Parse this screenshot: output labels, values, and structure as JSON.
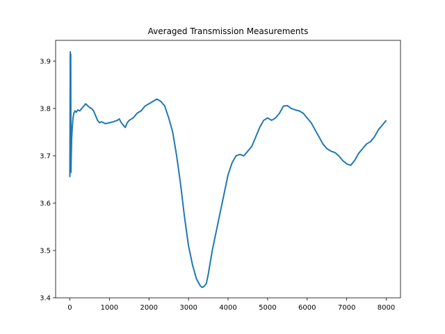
{
  "chart_data": {
    "type": "line",
    "title": "Averaged Transmission Measurements",
    "xlabel": "",
    "ylabel": "",
    "xlim": [
      -360,
      8360
    ],
    "ylim": [
      3.4,
      3.944
    ],
    "xticks": [
      0,
      1000,
      2000,
      3000,
      4000,
      5000,
      6000,
      7000,
      8000
    ],
    "yticks": [
      3.4,
      3.5,
      3.6,
      3.7,
      3.8,
      3.9
    ],
    "xtick_labels": [
      "0",
      "1000",
      "2000",
      "3000",
      "4000",
      "5000",
      "6000",
      "7000",
      "8000"
    ],
    "ytick_labels": [
      "3.4",
      "3.5",
      "3.6",
      "3.7",
      "3.8",
      "3.9"
    ],
    "grid": false,
    "series": [
      {
        "color": "#1f77b4",
        "x": [
          0,
          10,
          18,
          22,
          28,
          35,
          45,
          60,
          80,
          100,
          130,
          160,
          200,
          250,
          300,
          350,
          400,
          450,
          500,
          550,
          600,
          650,
          700,
          750,
          800,
          900,
          1000,
          1100,
          1200,
          1250,
          1300,
          1350,
          1400,
          1450,
          1500,
          1600,
          1700,
          1800,
          1900,
          2000,
          2100,
          2200,
          2300,
          2400,
          2500,
          2600,
          2700,
          2800,
          2900,
          3000,
          3100,
          3200,
          3300,
          3350,
          3400,
          3450,
          3500,
          3600,
          3700,
          3800,
          3900,
          4000,
          4100,
          4200,
          4300,
          4400,
          4500,
          4600,
          4700,
          4800,
          4900,
          5000,
          5100,
          5200,
          5300,
          5400,
          5500,
          5600,
          5700,
          5800,
          5900,
          6000,
          6100,
          6200,
          6300,
          6400,
          6500,
          6600,
          6700,
          6800,
          6900,
          7000,
          7100,
          7200,
          7300,
          7400,
          7500,
          7600,
          7700,
          7800,
          7900,
          8000
        ],
        "y": [
          3.655,
          3.92,
          3.68,
          3.915,
          3.665,
          3.7,
          3.735,
          3.76,
          3.78,
          3.79,
          3.795,
          3.792,
          3.797,
          3.795,
          3.8,
          3.805,
          3.81,
          3.806,
          3.802,
          3.8,
          3.795,
          3.785,
          3.775,
          3.77,
          3.772,
          3.768,
          3.77,
          3.772,
          3.775,
          3.778,
          3.77,
          3.765,
          3.76,
          3.77,
          3.775,
          3.78,
          3.79,
          3.795,
          3.805,
          3.81,
          3.815,
          3.82,
          3.815,
          3.805,
          3.78,
          3.75,
          3.7,
          3.64,
          3.57,
          3.51,
          3.47,
          3.44,
          3.425,
          3.422,
          3.425,
          3.43,
          3.45,
          3.5,
          3.54,
          3.58,
          3.62,
          3.66,
          3.685,
          3.7,
          3.703,
          3.7,
          3.71,
          3.72,
          3.74,
          3.76,
          3.775,
          3.78,
          3.775,
          3.78,
          3.79,
          3.805,
          3.806,
          3.8,
          3.797,
          3.795,
          3.79,
          3.78,
          3.77,
          3.755,
          3.74,
          3.725,
          3.715,
          3.71,
          3.707,
          3.7,
          3.69,
          3.683,
          3.68,
          3.69,
          3.705,
          3.715,
          3.725,
          3.73,
          3.74,
          3.755,
          3.765,
          3.775
        ]
      }
    ]
  }
}
